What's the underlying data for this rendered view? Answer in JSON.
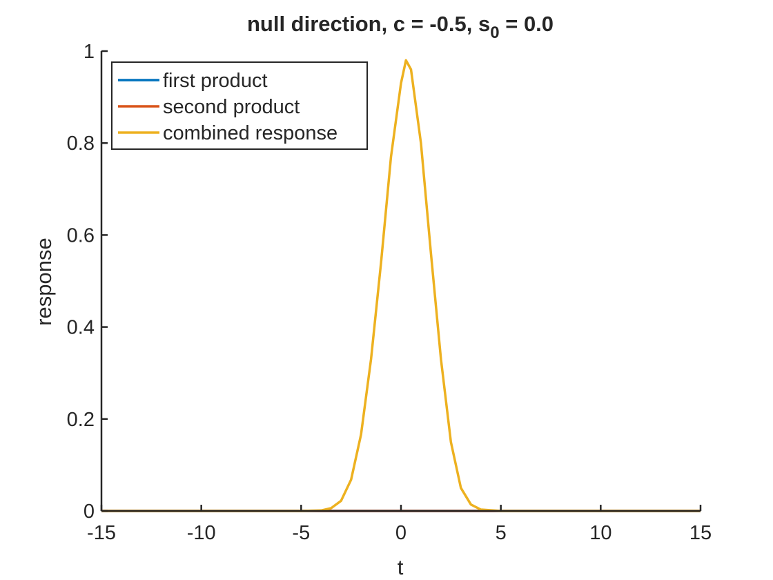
{
  "chart_data": {
    "type": "line",
    "title_main": "null direction,  c =  -0.5, s",
    "title_sub": "0",
    "title_tail": " =   0.0",
    "xlabel": "t",
    "ylabel": "response",
    "xlim": [
      -15,
      15
    ],
    "ylim": [
      0,
      1
    ],
    "x_ticks": [
      -15,
      -10,
      -5,
      0,
      5,
      10,
      15
    ],
    "x_tick_labels": [
      "-15",
      "-10",
      "-5",
      "0",
      "5",
      "10",
      "15"
    ],
    "y_ticks": [
      0,
      0.2,
      0.4,
      0.6,
      0.8,
      1
    ],
    "y_tick_labels": [
      "0",
      "0.2",
      "0.4",
      "0.6",
      "0.8",
      "1"
    ],
    "grid": false,
    "legend_position": "top-left",
    "series": [
      {
        "name": "first product",
        "color": "#0072bd",
        "x": [
          -15,
          -10,
          -5,
          0,
          5,
          10,
          15
        ],
        "y": [
          0,
          0,
          0,
          0,
          0,
          0,
          0
        ]
      },
      {
        "name": "second product",
        "color": "#d95319",
        "x": [
          -15,
          -10,
          -5,
          0,
          5,
          10,
          15
        ],
        "y": [
          0,
          0,
          0,
          0,
          0,
          0,
          0
        ]
      },
      {
        "name": "combined response",
        "color": "#edb120",
        "x": [
          -15,
          -5,
          -4,
          -3.5,
          -3,
          -2.5,
          -2,
          -1.5,
          -1,
          -0.5,
          0,
          0.25,
          0.5,
          1,
          1.5,
          2,
          2.5,
          3,
          3.5,
          4,
          5,
          15
        ],
        "y": [
          0,
          0,
          0.001,
          0.006,
          0.022,
          0.068,
          0.166,
          0.33,
          0.54,
          0.77,
          0.93,
          0.98,
          0.96,
          0.8,
          0.56,
          0.33,
          0.15,
          0.05,
          0.014,
          0.003,
          0,
          0
        ]
      }
    ]
  }
}
